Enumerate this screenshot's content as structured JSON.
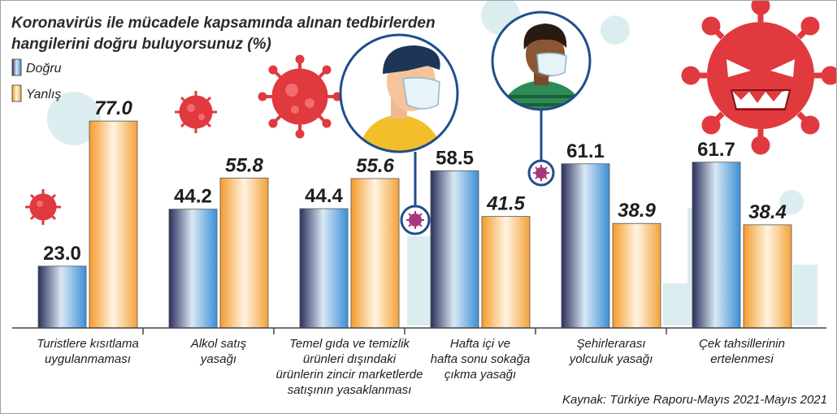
{
  "chart_data": {
    "type": "bar",
    "title": [
      "Koronavirüs ile mücadele kapsamında alınan tedbirlerden",
      "hangilerini doğru buluyorsunuz (%)"
    ],
    "categories": [
      [
        "Turistlere kısıtlama",
        "uygulanmaması"
      ],
      [
        "Alkol satış",
        "yasağı"
      ],
      [
        "Temel gıda ve temizlik",
        "ürünleri dışındaki",
        "ürünlerin zincir marketlerde",
        "satışının yasaklanması"
      ],
      [
        "Hafta içi ve",
        "hafta sonu sokağa",
        "çıkma yasağı"
      ],
      [
        "Şehirlerarası",
        "yolculuk yasağı"
      ],
      [
        "Çek tahsillerinin",
        "ertelenmesi"
      ]
    ],
    "series": [
      {
        "name": "Doğru",
        "values": [
          23.0,
          44.2,
          44.4,
          58.5,
          61.1,
          61.7
        ],
        "labels": [
          "23.0",
          "44.2",
          "44.4",
          "58.5",
          "61.1",
          "61.7"
        ]
      },
      {
        "name": "Yanlış",
        "values": [
          77.0,
          55.8,
          55.6,
          41.5,
          38.9,
          38.4
        ],
        "labels": [
          "77.0",
          "55.8",
          "55.6",
          "41.5",
          "38.9",
          "38.4"
        ]
      }
    ],
    "ylim": [
      0,
      100
    ],
    "legend": "top-left",
    "grid": false,
    "colors": {
      "dogru": [
        "#2b2f5c",
        "#d9e8f5",
        "#3d8fd6"
      ],
      "yanlis": [
        "#f49b2c",
        "#fff4e2",
        "#f3a23a"
      ],
      "virus": "#e0393e",
      "virus_small": "#a8377e",
      "bg_pale": "#d7ecef"
    }
  },
  "source": "Kaynak: Türkiye Raporu-Mayıs 2021-Mayıs 2021"
}
